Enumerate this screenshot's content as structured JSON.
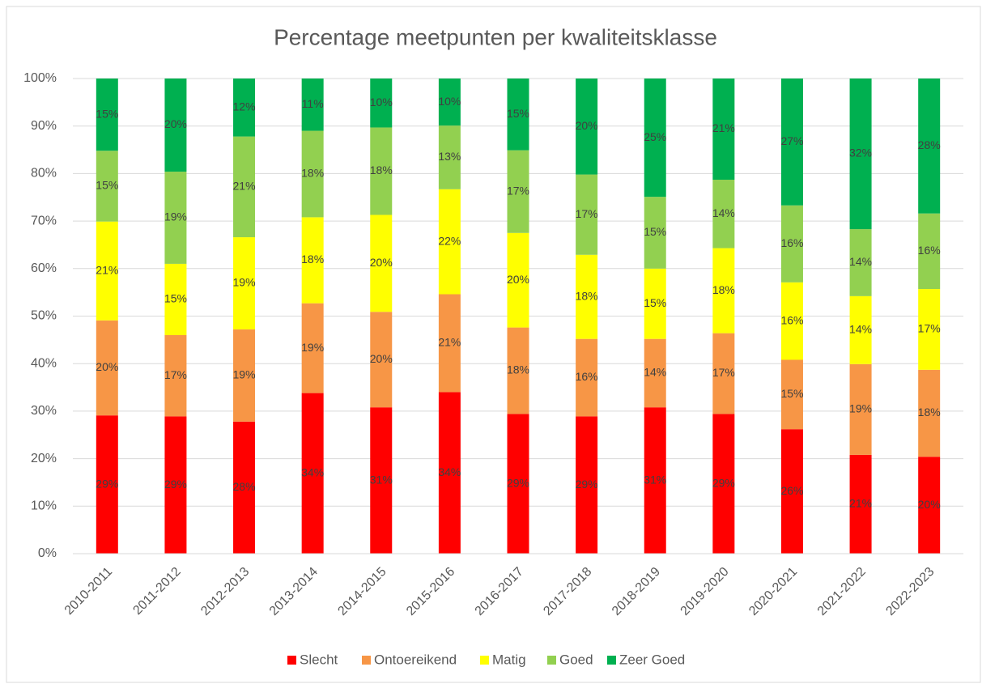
{
  "chart_data": {
    "type": "stacked_bar",
    "title": "Percentage meetpunten per kwaliteitsklasse",
    "categories": [
      "2010-2011",
      "2011-2012",
      "2012-2013",
      "2013-2014",
      "2014-2015",
      "2015-2016",
      "2016-2017",
      "2017-2018",
      "2018-2019",
      "2019-2020",
      "2020-2021",
      "2021-2022",
      "2022-2023"
    ],
    "series": [
      {
        "name": "Slecht",
        "color": "#ff0000",
        "values": [
          29.1,
          28.9,
          27.8,
          33.8,
          30.8,
          34.0,
          29.4,
          28.9,
          30.8,
          29.4,
          26.2,
          20.8,
          20.4
        ],
        "value_labels": [
          "29%",
          "29%",
          "28%",
          "34%",
          "31%",
          "34%",
          "29%",
          "29%",
          "31%",
          "29%",
          "26%",
          "21%",
          "20%"
        ]
      },
      {
        "name": "Ontoereikend",
        "color": "#f79646",
        "values": [
          20.0,
          17.1,
          19.4,
          18.9,
          20.1,
          20.6,
          18.2,
          16.3,
          14.4,
          17.0,
          14.6,
          19.1,
          18.3
        ],
        "value_labels": [
          "20%",
          "17%",
          "19%",
          "19%",
          "20%",
          "21%",
          "18%",
          "16%",
          "14%",
          "17%",
          "15%",
          "19%",
          "18%"
        ]
      },
      {
        "name": "Matig",
        "color": "#ffff00",
        "values": [
          20.8,
          15.0,
          19.4,
          18.1,
          20.4,
          22.1,
          19.9,
          17.7,
          14.8,
          17.9,
          16.3,
          14.3,
          17.0
        ],
        "value_labels": [
          "21%",
          "15%",
          "19%",
          "18%",
          "20%",
          "22%",
          "20%",
          "18%",
          "15%",
          "18%",
          "16%",
          "14%",
          "17%"
        ]
      },
      {
        "name": "Goed",
        "color": "#92d050",
        "values": [
          14.9,
          19.4,
          21.2,
          18.2,
          18.4,
          13.4,
          17.4,
          16.9,
          15.1,
          14.4,
          16.2,
          14.1,
          15.9
        ],
        "value_labels": [
          "15%",
          "19%",
          "21%",
          "18%",
          "18%",
          "13%",
          "17%",
          "17%",
          "15%",
          "14%",
          "16%",
          "14%",
          "16%"
        ]
      },
      {
        "name": "Zeer Goed",
        "color": "#00b050",
        "values": [
          15.2,
          19.6,
          12.2,
          11.0,
          10.3,
          9.9,
          15.1,
          20.2,
          24.9,
          21.3,
          26.7,
          31.7,
          28.4
        ],
        "value_labels": [
          "15%",
          "20%",
          "12%",
          "11%",
          "10%",
          "10%",
          "15%",
          "20%",
          "25%",
          "21%",
          "27%",
          "32%",
          "28%"
        ]
      }
    ],
    "ylim": [
      0,
      100
    ],
    "yticks": [
      {
        "value": 0,
        "label": "0%"
      },
      {
        "value": 10,
        "label": "10%"
      },
      {
        "value": 20,
        "label": "20%"
      },
      {
        "value": 30,
        "label": "30%"
      },
      {
        "value": 40,
        "label": "40%"
      },
      {
        "value": 50,
        "label": "50%"
      },
      {
        "value": 60,
        "label": "60%"
      },
      {
        "value": 70,
        "label": "70%"
      },
      {
        "value": 80,
        "label": "80%"
      },
      {
        "value": 90,
        "label": "90%"
      },
      {
        "value": 100,
        "label": "100%"
      }
    ],
    "grid": true,
    "legend": "bottom"
  }
}
